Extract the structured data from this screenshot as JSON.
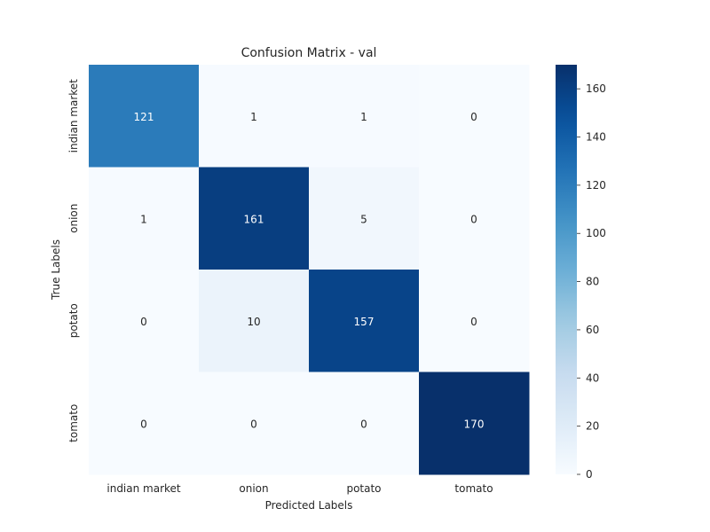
{
  "chart_data": {
    "type": "heatmap",
    "title": "Confusion Matrix - val",
    "xlabel": "Predicted Labels",
    "ylabel": "True Labels",
    "x_categories": [
      "indian market",
      "onion",
      "potato",
      "tomato"
    ],
    "y_categories": [
      "indian market",
      "onion",
      "potato",
      "tomato"
    ],
    "matrix": [
      [
        121,
        1,
        1,
        0
      ],
      [
        1,
        161,
        5,
        0
      ],
      [
        0,
        10,
        157,
        0
      ],
      [
        0,
        0,
        0,
        170
      ]
    ],
    "colorbar": {
      "min": 0,
      "max": 170,
      "ticks": [
        0,
        20,
        40,
        60,
        80,
        100,
        120,
        140,
        160
      ]
    },
    "colormap": "Blues"
  }
}
